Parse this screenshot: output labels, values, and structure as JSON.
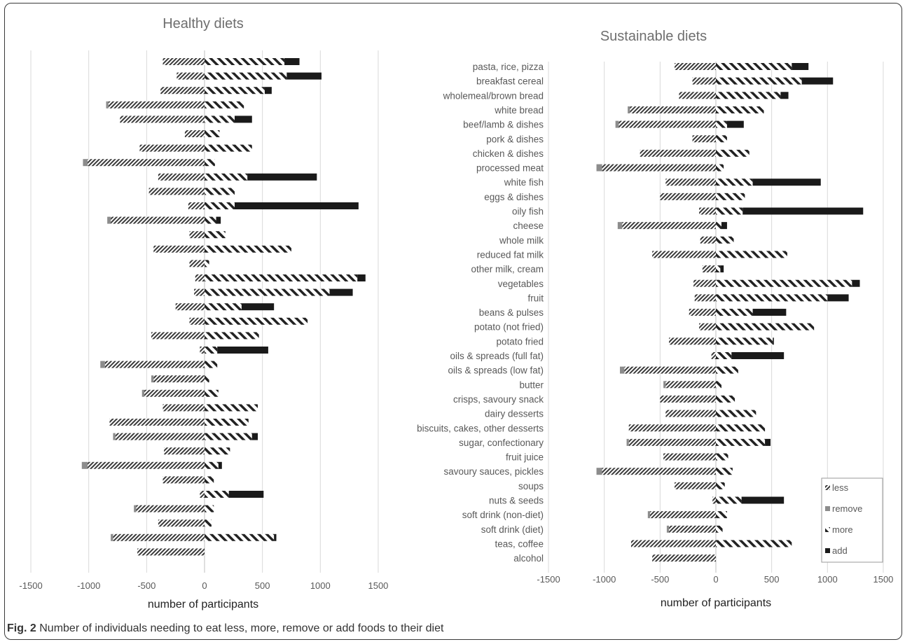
{
  "caption": {
    "label": "Fig. 2",
    "text": "Number of individuals needing to eat less, more, remove or add foods to their diet"
  },
  "colors": {
    "gridline": "#d9d9d9",
    "axis": "#bfbfbf",
    "remove": "#8c8c8c",
    "add": "#1a1a1a",
    "text": "#595959"
  },
  "chart_data": [
    {
      "type": "bar",
      "orientation": "horizontal",
      "stacked": true,
      "title": "Healthy diets",
      "xlabel": "number of participants",
      "xlim": [
        -1500,
        1500
      ],
      "xticks": [
        -1500,
        -1000,
        -500,
        0,
        500,
        1000,
        1500
      ],
      "category_labels_shown": false,
      "categories": [
        "pasta, rice, pizza",
        "breakfast cereal",
        "wholemeal/brown bread",
        "white bread",
        "beef/lamb & dishes",
        "pork & dishes",
        "chicken & dishes",
        "processed meat",
        "white fish",
        "eggs & dishes",
        "oily fish",
        "cheese",
        "whole milk",
        "reduced fat milk",
        "other milk, cream",
        "vegetables",
        "fruit",
        "beans & pulses",
        "potato (not fried)",
        "potato fried",
        "oils & spreads (full fat)",
        "oils & spreads (low fat)",
        "butter",
        "crisps, savoury snack",
        "dairy desserts",
        "biscuits, cakes, other desserts",
        "sugar, confectionary",
        "fruit juice",
        "savoury sauces, pickles",
        "soups",
        "nuts & seeds",
        "soft drink (non-diet)",
        "soft drink (diet)",
        "teas, coffee",
        "alcohol"
      ],
      "series": [
        {
          "name": "less",
          "values": [
            -360,
            -240,
            -380,
            -830,
            -730,
            -170,
            -560,
            -1010,
            -400,
            -480,
            -140,
            -810,
            -130,
            -440,
            -130,
            -80,
            -90,
            -250,
            -130,
            -460,
            -40,
            -860,
            -440,
            -520,
            -360,
            -820,
            -770,
            -350,
            -1010,
            -360,
            -40,
            -590,
            -400,
            -790,
            -580
          ]
        },
        {
          "name": "remove",
          "values": [
            0,
            0,
            0,
            -20,
            0,
            0,
            0,
            -40,
            0,
            0,
            0,
            -30,
            0,
            0,
            0,
            0,
            0,
            0,
            0,
            0,
            0,
            -40,
            -20,
            -20,
            0,
            0,
            -20,
            0,
            -50,
            0,
            0,
            -20,
            0,
            -20,
            0
          ]
        },
        {
          "name": "more",
          "values": [
            690,
            710,
            520,
            340,
            260,
            130,
            410,
            90,
            370,
            260,
            260,
            100,
            180,
            750,
            40,
            1320,
            1080,
            320,
            890,
            470,
            110,
            110,
            40,
            120,
            460,
            380,
            410,
            220,
            120,
            80,
            210,
            80,
            60,
            600,
            0
          ]
        },
        {
          "name": "add",
          "values": [
            130,
            300,
            60,
            0,
            150,
            0,
            0,
            0,
            600,
            0,
            1070,
            40,
            0,
            0,
            0,
            70,
            200,
            280,
            0,
            0,
            440,
            0,
            0,
            0,
            0,
            0,
            50,
            0,
            30,
            0,
            300,
            0,
            0,
            20,
            0
          ]
        }
      ]
    },
    {
      "type": "bar",
      "orientation": "horizontal",
      "stacked": true,
      "title": "Sustainable diets",
      "xlabel": "number of participants",
      "xlim": [
        -1500,
        1500
      ],
      "xticks": [
        -1500,
        -1000,
        -500,
        0,
        500,
        1000,
        1500
      ],
      "legend": [
        "less",
        "remove",
        "more",
        "add"
      ],
      "legend_position": "bottom-right",
      "categories": [
        "pasta, rice, pizza",
        "breakfast cereal",
        "wholemeal/brown bread",
        "white bread",
        "beef/lamb & dishes",
        "pork & dishes",
        "chicken & dishes",
        "processed meat",
        "white fish",
        "eggs & dishes",
        "oily fish",
        "cheese",
        "whole milk",
        "reduced fat milk",
        "other milk, cream",
        "vegetables",
        "fruit",
        "beans & pulses",
        "potato (not fried)",
        "potato fried",
        "oils & spreads (full fat)",
        "oils & spreads (low fat)",
        "butter",
        "crisps, savoury snack",
        "dairy desserts",
        "biscuits, cakes, other desserts",
        "sugar, confectionary",
        "fruit juice",
        "savoury sauces, pickles",
        "soups",
        "nuts & seeds",
        "soft drink (non-diet)",
        "soft drink (diet)",
        "teas, coffee",
        "alcohol"
      ],
      "series": [
        {
          "name": "less",
          "values": [
            -370,
            -210,
            -330,
            -770,
            -870,
            -210,
            -680,
            -1020,
            -450,
            -500,
            -150,
            -840,
            -140,
            -570,
            -120,
            -200,
            -190,
            -240,
            -150,
            -420,
            -40,
            -820,
            -450,
            -500,
            -450,
            -780,
            -780,
            -470,
            -1020,
            -370,
            -30,
            -590,
            -420,
            -760,
            -570
          ]
        },
        {
          "name": "remove",
          "values": [
            0,
            0,
            0,
            -20,
            -30,
            0,
            0,
            -50,
            0,
            0,
            0,
            -40,
            0,
            0,
            0,
            0,
            0,
            0,
            0,
            0,
            0,
            -40,
            -20,
            0,
            0,
            0,
            -20,
            0,
            -50,
            0,
            0,
            -20,
            -20,
            0,
            0
          ]
        },
        {
          "name": "more",
          "values": [
            680,
            770,
            580,
            430,
            100,
            100,
            300,
            70,
            330,
            260,
            240,
            50,
            160,
            640,
            40,
            1220,
            1000,
            330,
            880,
            510,
            140,
            200,
            50,
            170,
            360,
            440,
            440,
            110,
            150,
            80,
            230,
            100,
            60,
            680,
            0
          ]
        },
        {
          "name": "add",
          "values": [
            150,
            280,
            70,
            0,
            150,
            0,
            0,
            0,
            610,
            0,
            1080,
            50,
            0,
            0,
            30,
            70,
            190,
            300,
            0,
            10,
            470,
            0,
            0,
            0,
            0,
            0,
            50,
            0,
            0,
            0,
            380,
            0,
            0,
            0,
            0
          ]
        }
      ]
    }
  ]
}
